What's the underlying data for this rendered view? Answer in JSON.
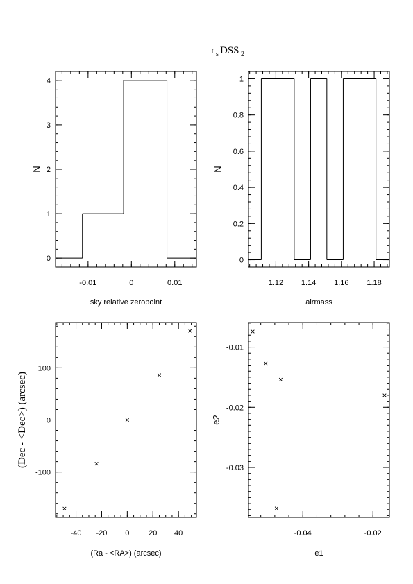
{
  "figure": {
    "title_main": "r",
    "title_sub1": "s",
    "title_mid": "DSS",
    "title_sub2": "2"
  },
  "chart_data": [
    {
      "id": "zeropoint",
      "type": "histogram",
      "xlabel": "sky relative zeropoint",
      "ylabel": "N",
      "xlim": [
        -0.0175,
        0.015
      ],
      "ylim": [
        -0.2,
        4.2
      ],
      "xticks": [
        -0.01,
        0,
        0.01
      ],
      "xticklabels": [
        "-0.01",
        "0",
        "0.01"
      ],
      "yticks": [
        0,
        1,
        2,
        3,
        4
      ],
      "yticklabels": [
        "0",
        "1",
        "2",
        "3",
        "4"
      ],
      "bins": [
        {
          "x0": -0.0175,
          "x1": -0.0113,
          "count": 0
        },
        {
          "x0": -0.0113,
          "x1": -0.0018,
          "count": 1
        },
        {
          "x0": -0.0018,
          "x1": 0.0082,
          "count": 4
        },
        {
          "x0": 0.0082,
          "x1": 0.015,
          "count": 0
        }
      ]
    },
    {
      "id": "airmass",
      "type": "histogram",
      "xlabel": "airmass",
      "ylabel": "N",
      "xlim": [
        1.1033,
        1.1893
      ],
      "ylim": [
        -0.04,
        1.04
      ],
      "xticks": [
        1.12,
        1.14,
        1.16,
        1.18
      ],
      "xticklabels": [
        "1.12",
        "1.14",
        "1.16",
        "1.18"
      ],
      "yticks": [
        0,
        0.2,
        0.4,
        0.6,
        0.8,
        1
      ],
      "yticklabels": [
        "0",
        "0.2",
        "0.4",
        "0.6",
        "0.8",
        "1"
      ],
      "bins": [
        {
          "x0": 1.1033,
          "x1": 1.1111,
          "count": 0
        },
        {
          "x0": 1.1111,
          "x1": 1.1312,
          "count": 1
        },
        {
          "x0": 1.1312,
          "x1": 1.1412,
          "count": 0
        },
        {
          "x0": 1.1412,
          "x1": 1.1511,
          "count": 1
        },
        {
          "x0": 1.1511,
          "x1": 1.1611,
          "count": 0
        },
        {
          "x0": 1.1611,
          "x1": 1.1811,
          "count": 1
        },
        {
          "x0": 1.1811,
          "x1": 1.1893,
          "count": 0
        }
      ]
    },
    {
      "id": "radec",
      "type": "scatter",
      "xlabel": "(Ra - <RA>) (arcsec)",
      "ylabel": "(Dec - <Dec>) (arcsec)",
      "xlim": [
        -56,
        54
      ],
      "ylim": [
        -187,
        187
      ],
      "xticks": [
        -40,
        -20,
        0,
        20,
        40
      ],
      "xticklabels": [
        "-40",
        "-20",
        "0",
        "20",
        "40"
      ],
      "yticks": [
        -100,
        0,
        100
      ],
      "yticklabels": [
        "-100",
        "0",
        "100"
      ],
      "points": [
        {
          "x": -49,
          "y": -170
        },
        {
          "x": -24,
          "y": -84
        },
        {
          "x": 0,
          "y": 0
        },
        {
          "x": 25,
          "y": 86
        },
        {
          "x": 49,
          "y": 171
        }
      ]
    },
    {
      "id": "ellipticity",
      "type": "scatter",
      "xlabel": "e1",
      "ylabel": "e2",
      "xlim": [
        -0.0555,
        -0.0153
      ],
      "ylim": [
        -0.0383,
        -0.0059
      ],
      "xticks": [
        -0.04,
        -0.02
      ],
      "xticklabels": [
        "-0.04",
        "-0.02"
      ],
      "yticks": [
        -0.01,
        -0.02,
        -0.03
      ],
      "yticklabels": [
        "-0.01",
        "-0.02",
        "-0.03"
      ],
      "points": [
        {
          "x": -0.0543,
          "y": -0.0074
        },
        {
          "x": -0.0506,
          "y": -0.0127
        },
        {
          "x": -0.0463,
          "y": -0.0154
        },
        {
          "x": -0.0475,
          "y": -0.0368
        },
        {
          "x": -0.0167,
          "y": -0.018
        }
      ]
    }
  ]
}
